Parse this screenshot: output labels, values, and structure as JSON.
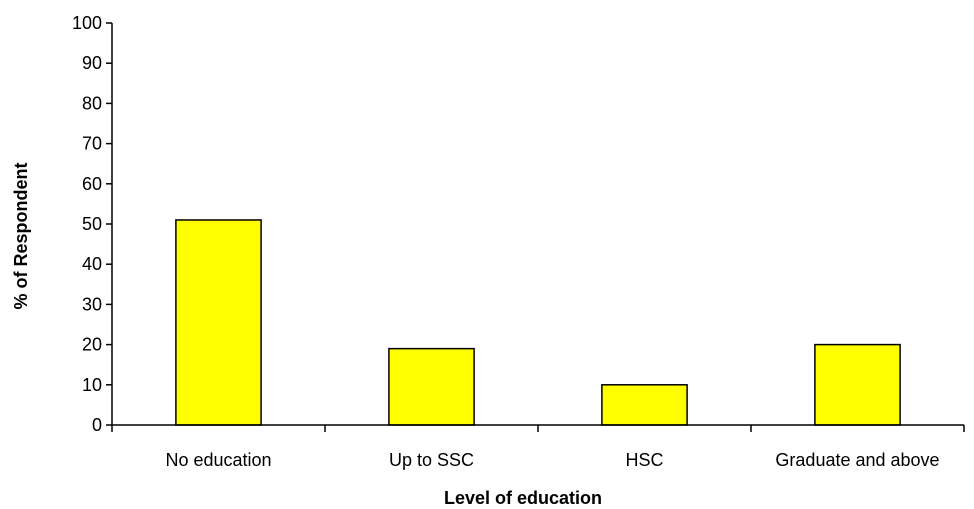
{
  "chart_data": {
    "type": "bar",
    "categories": [
      "No education",
      "Up to SSC",
      "HSC",
      "Graduate and above"
    ],
    "values": [
      51,
      19,
      10,
      20
    ],
    "title": "",
    "xlabel": "Level of education",
    "ylabel": "% of Respondent",
    "ylim": [
      0,
      100
    ],
    "yticks": [
      0,
      10,
      20,
      30,
      40,
      50,
      60,
      70,
      80,
      90,
      100
    ],
    "grid": false,
    "legend": "none",
    "colors": {
      "bar_fill": "#ffff00",
      "bar_stroke": "#000000",
      "axis": "#000000"
    }
  }
}
